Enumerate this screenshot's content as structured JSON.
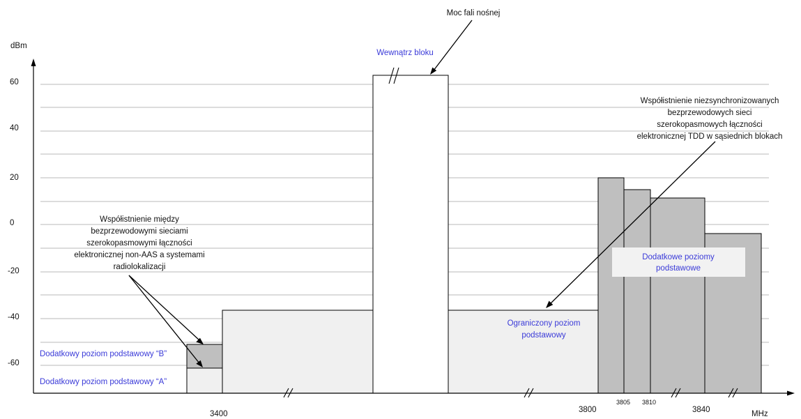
{
  "axis": {
    "y_unit": "dBm",
    "x_unit": "MHz",
    "y_ticks": [
      "60",
      "40",
      "20",
      "0",
      "-20",
      "-40",
      "-60"
    ],
    "x_ticks_major": [
      "3400",
      "3800",
      "3840"
    ],
    "x_ticks_minor": [
      "3805",
      "3810"
    ]
  },
  "labels": {
    "carrier_power": "Moc fali nośnej",
    "in_block": "Wewnątrz bloku",
    "coexist_tdd": [
      "Współistnienie niezsynchronizowanych",
      "bezprzewodowych sieci",
      "szerokopasmowych łączności",
      "elektronicznej TDD w sąsiednich blokach"
    ],
    "coexist_radar": [
      "Współistnienie między",
      "bezprzewodowymi sieciami",
      "szerokopasmowymi łączności",
      "elektronicznej non-AAS a systemami",
      "radiolokalizacji"
    ],
    "additional_base_levels": [
      "Dodatkowe poziomy",
      "podstawowe"
    ],
    "restricted_base_level": [
      "Ograniczony poziom",
      "podstawowy"
    ],
    "additional_base_B": "Dodatkowy poziom podstawowy “B”",
    "additional_base_A": "Dodatkowy poziom podstawowy “A”"
  },
  "colors": {
    "blue_text": "#3a3ad8",
    "light_block": "#f0f0f0",
    "dark_block": "#bfbfbf",
    "grid": "#b8b8b8"
  }
}
